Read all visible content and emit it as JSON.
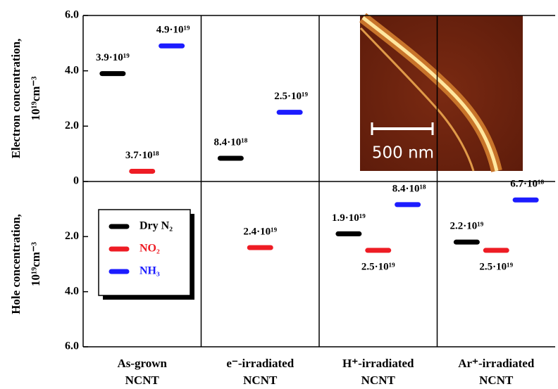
{
  "chart_data": [
    {
      "type": "bar",
      "ylabel": [
        "Electron concentration,",
        "10¹⁹cm⁻³"
      ],
      "ylim": [
        0,
        6
      ],
      "yticks": [
        0,
        {
          "value": 2,
          "label": "2.0"
        },
        {
          "value": 4,
          "label": "4.0"
        },
        {
          "value": 6,
          "label": "6.0"
        }
      ],
      "annotation": "500 nm",
      "series": [
        {
          "name": "Dry N₂",
          "color": "#000000",
          "values": [
            3.9,
            0.84,
            null,
            null
          ],
          "value_labels": [
            "3.9·10¹⁹",
            "8.4·10¹⁸",
            null,
            null
          ]
        },
        {
          "name": "NO₂",
          "color": "#ee1c24",
          "values": [
            0.37,
            null,
            null,
            null
          ],
          "value_labels": [
            "3.7·10¹⁸",
            null,
            null,
            null
          ]
        },
        {
          "name": "NH₃",
          "color": "#1c1cff",
          "values": [
            4.9,
            2.5,
            null,
            null
          ],
          "value_labels": [
            "4.9·10¹⁹",
            "2.5·10¹⁹",
            null,
            null
          ]
        }
      ]
    },
    {
      "type": "bar",
      "ylabel": [
        "Hole concentration,",
        "10¹⁹cm⁻³"
      ],
      "ylim": [
        6,
        0
      ],
      "yticks": [
        {
          "value": 2,
          "label": "2.0"
        },
        {
          "value": 4,
          "label": "4.0"
        },
        {
          "value": 6,
          "label": "6.0"
        }
      ],
      "categories": [
        [
          "As-grown",
          "NCNT"
        ],
        [
          "e⁻-irradiated",
          "NCNT"
        ],
        [
          "H⁺-irradiated",
          "NCNT"
        ],
        [
          "Ar⁺-irradiated",
          "NCNT"
        ]
      ],
      "legend": "upper left",
      "series": [
        {
          "name": "Dry N₂",
          "color": "#000000",
          "values": [
            null,
            null,
            1.9,
            2.2
          ],
          "value_labels": [
            null,
            null,
            "1.9·10¹⁹",
            "2.2·10¹⁹"
          ]
        },
        {
          "name": "NO₂",
          "color": "#ee1c24",
          "values": [
            null,
            2.4,
            2.5,
            2.5
          ],
          "value_labels": [
            null,
            "2.4·10¹⁹",
            "2.5·10¹⁹",
            "2.5·10¹⁹"
          ]
        },
        {
          "name": "NH₃",
          "color": "#1c1cff",
          "values": [
            null,
            null,
            0.84,
            0.67
          ],
          "value_labels": [
            null,
            null,
            "8.4·10¹⁸",
            "6.7·10¹⁸"
          ]
        }
      ]
    }
  ]
}
